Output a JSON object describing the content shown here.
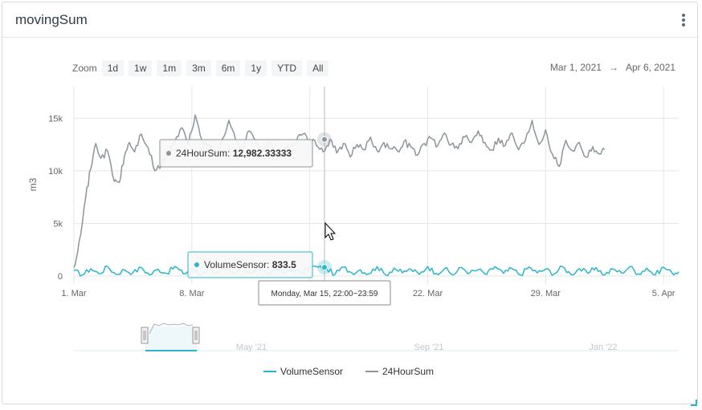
{
  "widget": {
    "title": "movingSum"
  },
  "zoom": {
    "label": "Zoom",
    "buttons": [
      "1d",
      "1w",
      "1m",
      "3m",
      "6m",
      "1y",
      "YTD",
      "All"
    ]
  },
  "range": {
    "from": "Mar 1, 2021",
    "arrow": "→",
    "to": "Apr 6, 2021"
  },
  "tooltips": {
    "sum_series": "24HourSum",
    "sum_value": "12,982.33333",
    "sensor_series": "VolumeSensor",
    "sensor_value": "833.5",
    "time": "Monday, Mar 15, 22:00~23:59"
  },
  "colors": {
    "VolumeSensor": "#2bb5cc",
    "24HourSum": "#8c9599"
  },
  "chart_data": {
    "type": "line",
    "ylabel": "m3",
    "ylim": [
      0,
      18000
    ],
    "y_ticks": [
      0,
      5000,
      10000,
      15000
    ],
    "y_tick_labels": [
      "0",
      "5k",
      "10k",
      "15k"
    ],
    "x_range_days": [
      0,
      35.9
    ],
    "x_tick_days": [
      0,
      7,
      14,
      21,
      28,
      35
    ],
    "x_tick_labels": [
      "1. Mar",
      "8. Mar",
      "15. Mar",
      "22. Mar",
      "29. Mar",
      "5. Apr"
    ],
    "legend_position": "bottom",
    "grid": true,
    "series": [
      {
        "name": "VolumeSensor",
        "x": [
          0,
          0.5,
          1,
          1.5,
          2,
          2.5,
          3,
          3.5,
          4,
          4.5,
          5,
          5.5,
          6,
          6.5,
          7,
          7.5,
          8,
          8.5,
          9,
          9.5,
          10,
          10.5,
          11,
          11.5,
          12,
          12.5,
          13,
          13.5,
          14,
          14.5,
          15,
          15.5,
          16,
          16.5,
          17,
          17.5,
          18,
          18.5,
          19,
          19.5,
          20,
          20.5,
          21,
          21.5,
          22,
          22.5,
          23,
          23.5,
          24,
          24.5,
          25,
          25.5,
          26,
          26.5,
          27,
          27.5,
          28,
          28.5,
          29,
          29.5,
          30,
          30.5,
          31,
          31.5,
          32,
          32.5,
          33,
          33.5,
          34,
          34.5,
          35,
          35.5,
          35.9
        ],
        "y": [
          500,
          100,
          700,
          200,
          900,
          150,
          600,
          300,
          800,
          100,
          650,
          250,
          900,
          200,
          700,
          100,
          850,
          300,
          600,
          150,
          900,
          250,
          700,
          100,
          800,
          300,
          650,
          200,
          900,
          833.5,
          700,
          150,
          850,
          300,
          600,
          200,
          900,
          100,
          750,
          300,
          650,
          150,
          900,
          250,
          700,
          100,
          800,
          300,
          600,
          150,
          900,
          250,
          700,
          100,
          850,
          300,
          650,
          200,
          900,
          150,
          700,
          250,
          800,
          100,
          650,
          300,
          900,
          200,
          750,
          100,
          850,
          300,
          400
        ]
      },
      {
        "name": "24HourSum",
        "x": [
          0,
          0.3,
          0.7,
          1,
          1.3,
          1.6,
          2,
          2.4,
          2.7,
          3,
          3.3,
          3.6,
          4,
          4.4,
          4.8,
          5.2,
          5.6,
          6,
          6.4,
          6.8,
          7.2,
          7.6,
          8,
          8.4,
          8.8,
          9.2,
          9.6,
          10,
          10.4,
          10.8,
          11.2,
          11.6,
          12,
          12.4,
          12.8,
          13.2,
          13.6,
          14,
          14.4,
          14.8,
          15.2,
          15.6,
          16,
          16.4,
          16.8,
          17.2,
          17.6,
          18,
          18.4,
          18.8,
          19.2,
          19.6,
          20,
          20.4,
          20.8,
          21.2,
          21.6,
          22,
          22.4,
          22.8,
          23.2,
          23.6,
          24,
          24.4,
          24.8,
          25.2,
          25.6,
          26,
          26.4,
          26.8,
          27.2,
          27.6,
          28,
          28.4,
          28.8,
          29.2,
          29.6,
          30,
          30.4,
          30.8,
          31.2,
          31.5
        ],
        "y": [
          800,
          3200,
          7500,
          10200,
          12600,
          11200,
          11900,
          9000,
          8900,
          11400,
          12700,
          11800,
          13500,
          12200,
          10000,
          10500,
          11900,
          12800,
          14100,
          12500,
          15300,
          12900,
          12400,
          11400,
          13000,
          14800,
          12900,
          12000,
          13800,
          12900,
          11800,
          12900,
          11000,
          11700,
          12300,
          12800,
          13500,
          12982.3,
          12400,
          11800,
          13000,
          11700,
          12600,
          11300,
          12500,
          12000,
          13200,
          11900,
          12700,
          12100,
          11900,
          12800,
          12300,
          11500,
          12600,
          13100,
          12400,
          13600,
          12500,
          12100,
          13200,
          12700,
          13800,
          12700,
          12000,
          13100,
          12400,
          13600,
          12000,
          12900,
          14800,
          12500,
          13900,
          11600,
          10400,
          12900,
          11900,
          12700,
          11300,
          12300,
          11600,
          12000
        ]
      }
    ]
  },
  "navigator": {
    "tick_labels": [
      "May '21",
      "Sep '21",
      "Jan '22"
    ]
  }
}
